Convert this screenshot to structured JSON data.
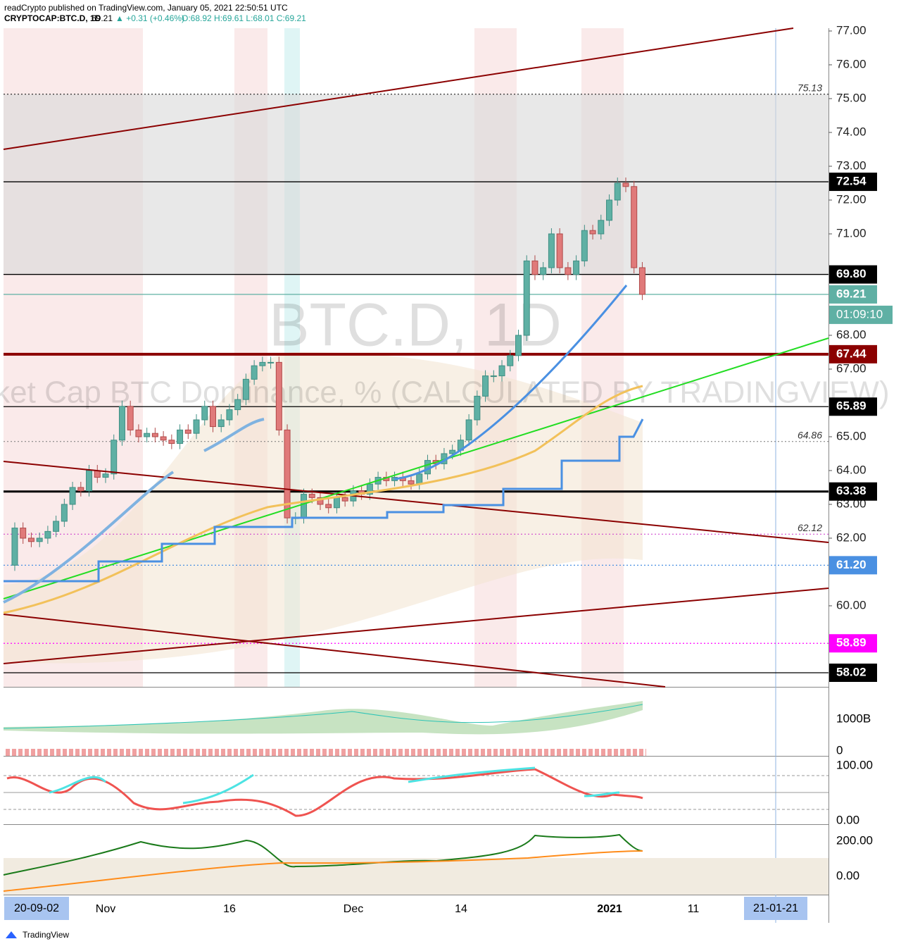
{
  "header": {
    "publisher": "readCrypto published on TradingView.com, January 05, 2021 22:50:51 UTC",
    "symbol": "CRYPTOCAP:BTC.D, 1D",
    "last": "69.21",
    "change": "▲ +0.31 (+0.46%)",
    "ohlc": "O:68.92 H:69.61 L:68.01 C:69.21"
  },
  "chart_data": {
    "type": "candlestick",
    "watermark": "BTC.D, 1D",
    "watermark_subtitle": "Market Cap BTC Dominance, %  (CALCULATED BY TRADINGVIEW)",
    "up_color": "#5fb0a4",
    "down_color": "#e07a7a",
    "values": [
      61.2,
      62.3,
      62.0,
      61.9,
      62.0,
      62.2,
      62.5,
      63.0,
      63.5,
      63.4,
      64.0,
      63.8,
      63.9,
      64.9,
      65.9,
      65.2,
      65.0,
      65.1,
      65.0,
      64.9,
      64.8,
      65.2,
      65.1,
      65.5,
      65.9,
      65.3,
      65.5,
      65.8,
      66.1,
      66.7,
      67.1,
      67.2,
      67.2,
      65.2,
      62.6,
      62.6,
      63.3,
      63.2,
      63.0,
      62.9,
      63.2,
      63.1,
      63.4,
      63.3,
      63.6,
      63.8,
      63.7,
      63.8,
      63.7,
      63.6,
      63.9,
      64.3,
      64.2,
      64.5,
      64.6,
      64.9,
      65.5,
      66.2,
      66.8,
      66.8,
      67.1,
      67.4,
      68.0,
      70.2,
      69.8,
      70.0,
      71.0,
      70.0,
      69.8,
      70.2,
      71.1,
      71.0,
      71.4,
      72.0,
      72.5,
      72.4,
      70.0,
      69.21
    ],
    "ylim": [
      58.02,
      77
    ],
    "yticks": [
      {
        "value": 77,
        "label": "77.00"
      },
      {
        "value": 76,
        "label": "76.00"
      },
      {
        "value": 75,
        "label": "75.00"
      },
      {
        "value": 74,
        "label": "74.00"
      },
      {
        "value": 73,
        "label": "73.00"
      },
      {
        "value": 72,
        "label": "72.00"
      },
      {
        "value": 71,
        "label": "71.00"
      },
      {
        "value": 68,
        "label": "68.00"
      },
      {
        "value": 67,
        "label": "67.00"
      },
      {
        "value": 65,
        "label": "65.00"
      },
      {
        "value": 64,
        "label": "64.00"
      },
      {
        "value": 63,
        "label": "63.00"
      },
      {
        "value": 62,
        "label": "62.00"
      },
      {
        "value": 60,
        "label": "60.00"
      }
    ],
    "levels": [
      {
        "value": 75.13,
        "color": "#000000",
        "style": "italic"
      },
      {
        "value": 72.54,
        "color": "#000000",
        "style": "box"
      },
      {
        "value": {
          "value": 69.8,
          "label": "69.80"
        },
        "color": "#000000",
        "style": "box"
      },
      {
        "value": 69.21,
        "color": "#5fb0a4",
        "style": "box"
      },
      {
        "value": 67.44,
        "color": "#8b0000",
        "style": "box"
      },
      {
        "value": 65.89,
        "color": "#000000",
        "style": "box"
      },
      {
        "value": 64.86,
        "color": "#777777",
        "style": "italic"
      },
      {
        "value": 63.38,
        "color": "#000000",
        "style": "box"
      },
      {
        "value": 62.12,
        "color": "#cc33cc",
        "style": "italic"
      },
      {
        "value": {
          "value": 61.2,
          "label": "61.20"
        },
        "color": "#4a90e2",
        "style": "box"
      },
      {
        "value": 58.89,
        "color": "#ff00ff",
        "style": "box"
      },
      {
        "value": 58.02,
        "color": "#000000",
        "style": "box"
      }
    ],
    "countdown": "01:09:10",
    "x_labels": [
      "Nov",
      "16",
      "Dec",
      "14",
      "2021",
      "11"
    ],
    "range_start": "20-09-02",
    "range_end": "21-01-21",
    "pane_labels": {
      "volume": [
        "1000B",
        "0"
      ],
      "oscillator": [
        "100.00",
        "0.00"
      ],
      "momentum": [
        "200.00",
        "0.00"
      ]
    }
  },
  "footer": "TradingView"
}
